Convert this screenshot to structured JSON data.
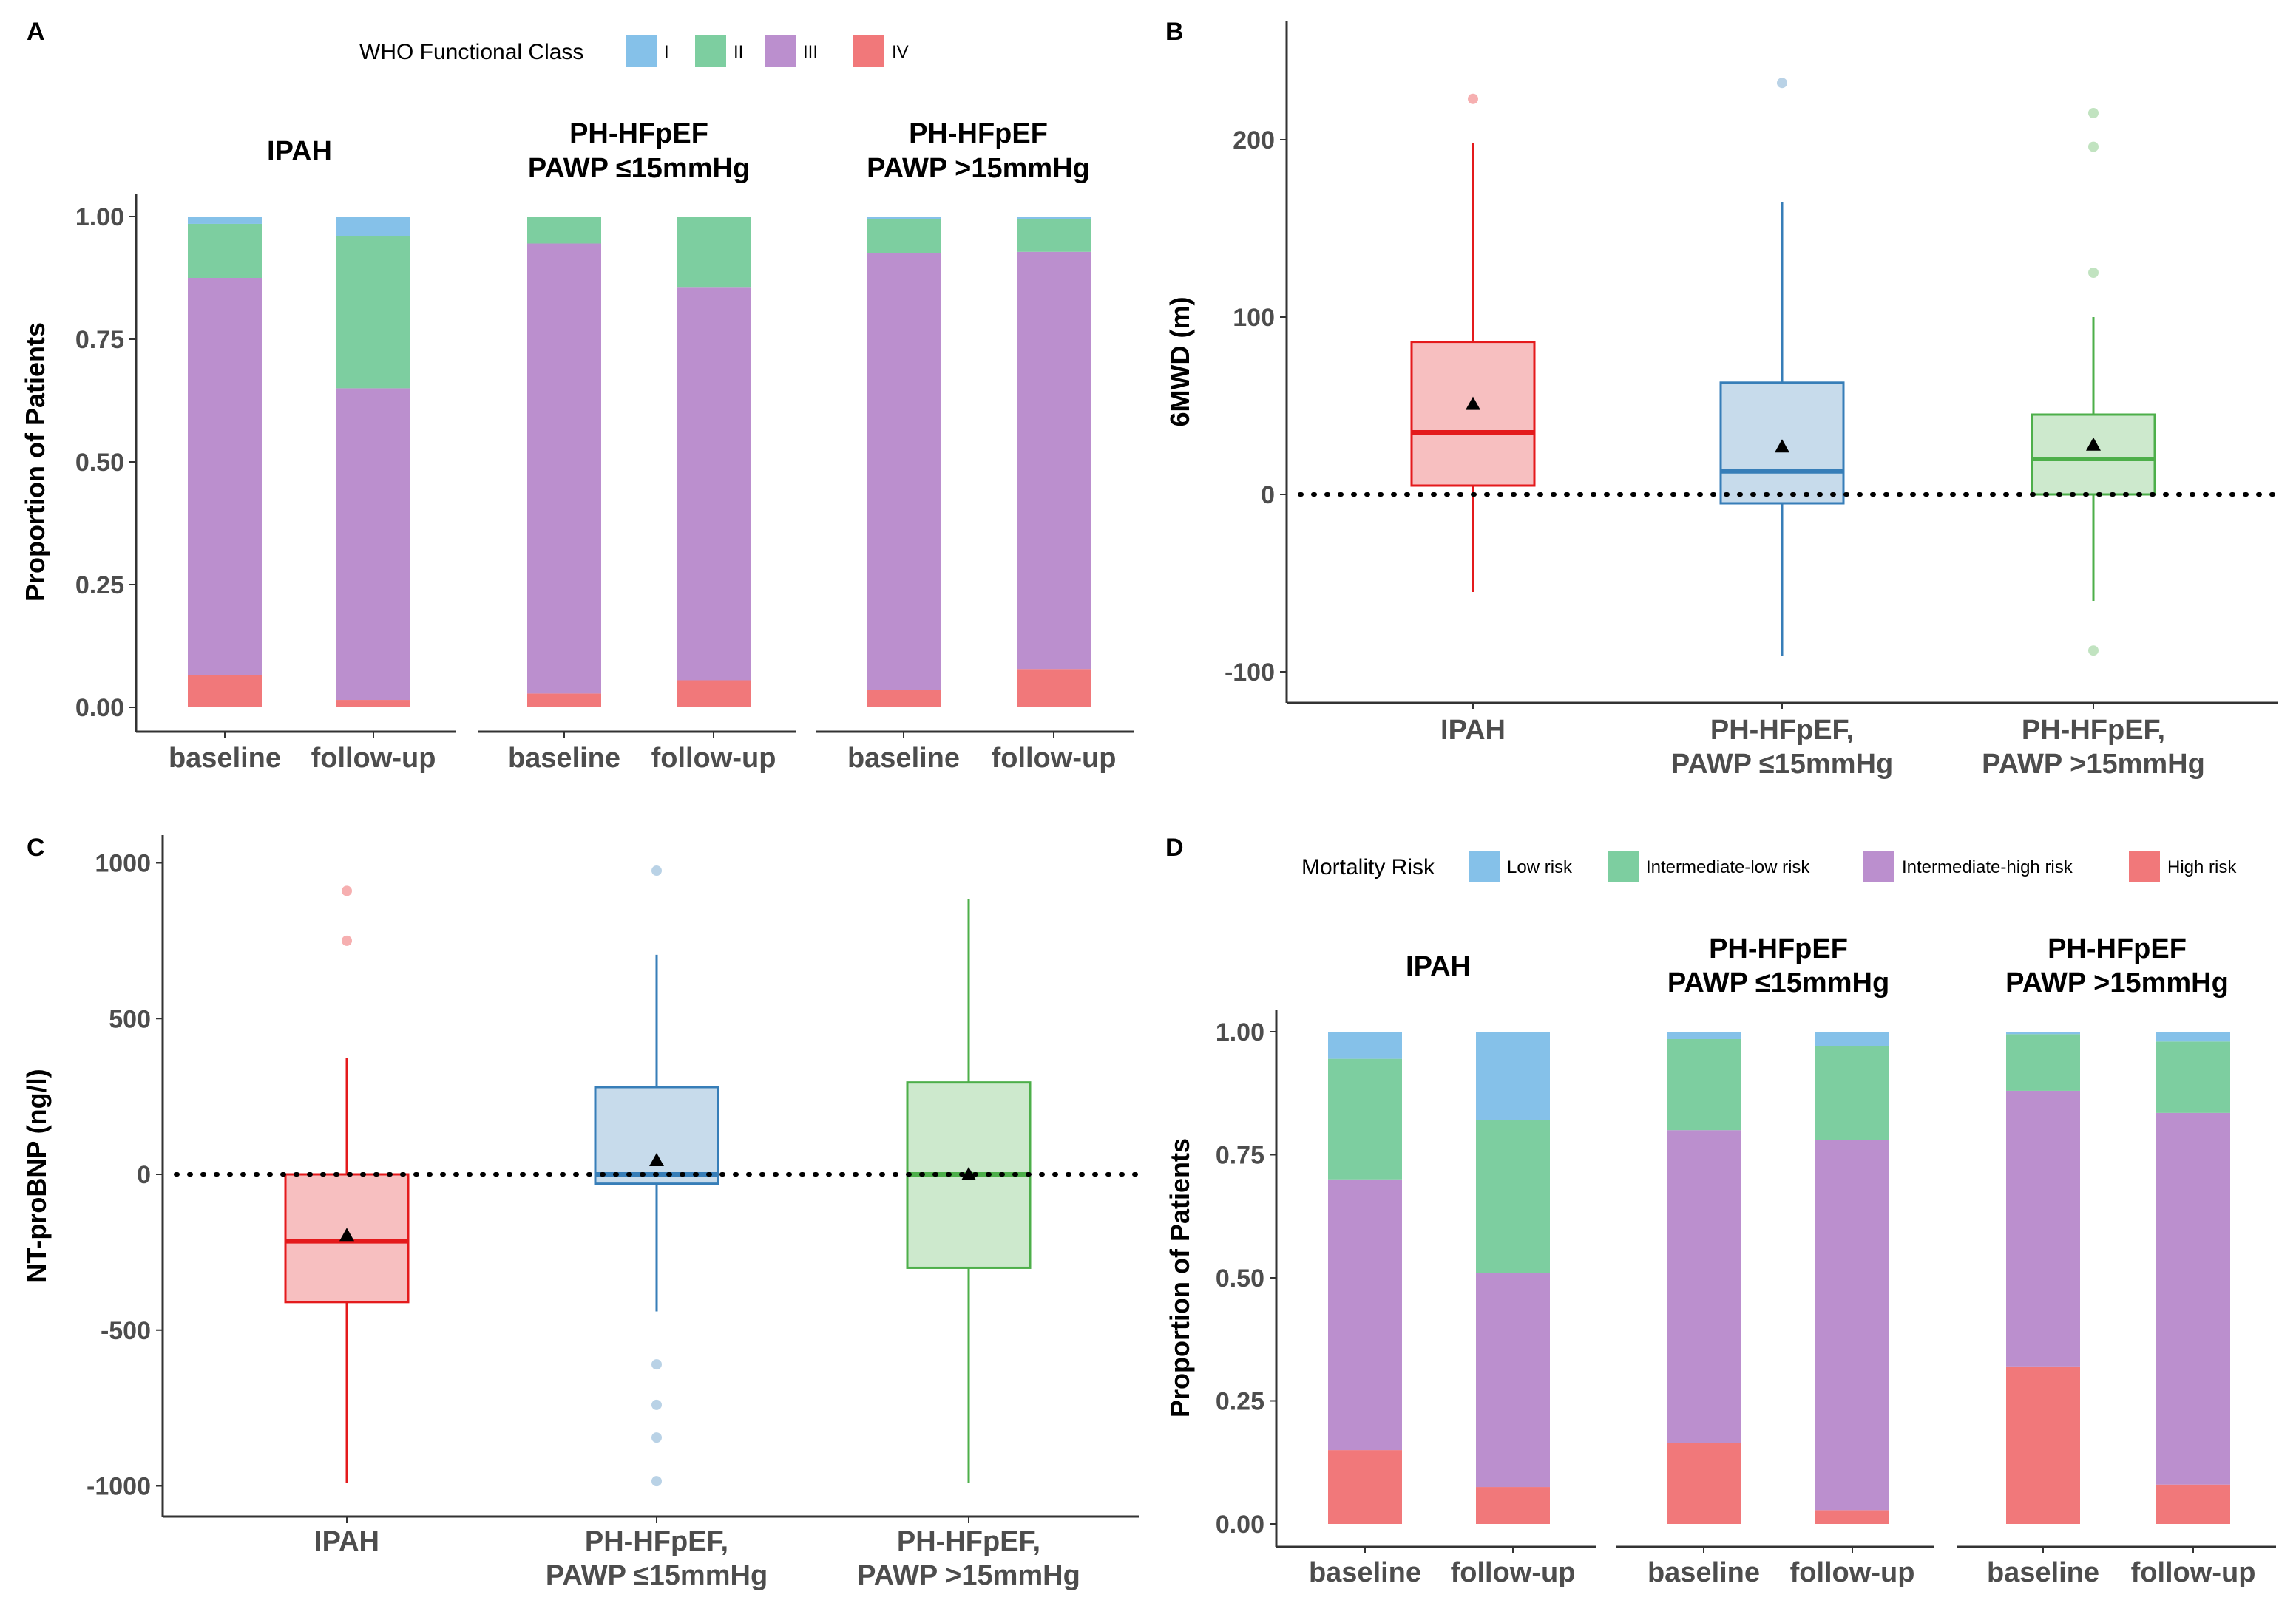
{
  "colors": {
    "I": "#85C1E9",
    "II": "#7DCEA0",
    "III": "#BB8FCE",
    "IV": "#F1787A",
    "IPAH": "#E41A1C",
    "PH_low": "#377EB8",
    "PH_high": "#4DAF4A"
  },
  "chart_data": [
    {
      "panel": "A",
      "type": "bar",
      "stacked": true,
      "legend_title": "WHO Functional Class",
      "legend": [
        "I",
        "II",
        "III",
        "IV"
      ],
      "ylabel": "Proportion of Patients",
      "ylim": [
        0,
        1
      ],
      "yticks": [
        "0.00",
        "0.25",
        "0.50",
        "0.75",
        "1.00"
      ],
      "categories": [
        "baseline",
        "follow-up"
      ],
      "facets": [
        {
          "title": [
            "IPAH"
          ],
          "bars": [
            {
              "label": "baseline",
              "IV": 0.065,
              "III": 0.81,
              "II": 0.11,
              "I": 0.015
            },
            {
              "label": "follow-up",
              "IV": 0.015,
              "III": 0.635,
              "II": 0.31,
              "I": 0.04
            }
          ]
        },
        {
          "title": [
            "PH-HFpEF",
            "PAWP ≤15mmHg"
          ],
          "bars": [
            {
              "label": "baseline",
              "IV": 0.028,
              "III": 0.917,
              "II": 0.055,
              "I": 0.0
            },
            {
              "label": "follow-up",
              "IV": 0.055,
              "III": 0.8,
              "II": 0.145,
              "I": 0.0
            }
          ]
        },
        {
          "title": [
            "PH-HFpEF",
            "PAWP >15mmHg"
          ],
          "bars": [
            {
              "label": "baseline",
              "IV": 0.035,
              "III": 0.89,
              "II": 0.07,
              "I": 0.005
            },
            {
              "label": "follow-up",
              "IV": 0.078,
              "III": 0.85,
              "II": 0.067,
              "I": 0.005
            }
          ]
        }
      ]
    },
    {
      "panel": "B",
      "type": "box",
      "ylabel": "6MWD (m)",
      "ylim": [
        -118,
        268
      ],
      "yticks": [
        -100,
        0,
        100,
        200
      ],
      "groups": [
        {
          "label": [
            "IPAH"
          ],
          "color_key": "IPAH",
          "q1": 5,
          "median": 35,
          "q3": 86,
          "whisker_low": -55,
          "whisker_high": 198,
          "mean": 51,
          "outliers": [
            223
          ]
        },
        {
          "label": [
            "PH-HFpEF,",
            "PAWP ≤15mmHg"
          ],
          "color_key": "PH_low",
          "q1": -5,
          "median": 13,
          "q3": 63,
          "whisker_low": -91,
          "whisker_high": 165,
          "mean": 27,
          "outliers": [
            232
          ]
        },
        {
          "label": [
            "PH-HFpEF,",
            "PAWP >15mmHg"
          ],
          "color_key": "PH_high",
          "q1": 0,
          "median": 20,
          "q3": 45,
          "whisker_low": -60,
          "whisker_high": 100,
          "mean": 28,
          "outliers": [
            215,
            196,
            125,
            -88
          ]
        }
      ]
    },
    {
      "panel": "C",
      "type": "box",
      "ylabel": "NT-proBNP (ng/l)",
      "ylim": [
        -1110,
        1110
      ],
      "yticks": [
        -1000,
        -500,
        0,
        500,
        1000
      ],
      "groups": [
        {
          "label": [
            "IPAH"
          ],
          "color_key": "IPAH",
          "q1": -410,
          "median": -215,
          "q3": 0,
          "whisker_low": -990,
          "whisker_high": 375,
          "mean": -195,
          "outliers": [
            910,
            750
          ]
        },
        {
          "label": [
            "PH-HFpEF,",
            "PAWP ≤15mmHg"
          ],
          "color_key": "PH_low",
          "q1": -30,
          "median": 0,
          "q3": 280,
          "whisker_low": -440,
          "whisker_high": 705,
          "mean": 45,
          "outliers": [
            975,
            -610,
            -740,
            -845,
            -985
          ]
        },
        {
          "label": [
            "PH-HFpEF,",
            "PAWP >15mmHg"
          ],
          "color_key": "PH_high",
          "q1": -300,
          "median": 0,
          "q3": 295,
          "whisker_low": -990,
          "whisker_high": 885,
          "mean": 0,
          "outliers": []
        }
      ]
    },
    {
      "panel": "D",
      "type": "bar",
      "stacked": true,
      "legend_title": "Mortality Risk",
      "legend": [
        "Low risk",
        "Intermediate-low risk",
        "Intermediate-high risk",
        "High risk"
      ],
      "ylabel": "Proportion of Patients",
      "ylim": [
        0,
        1
      ],
      "yticks": [
        "0.00",
        "0.25",
        "0.50",
        "0.75",
        "1.00"
      ],
      "categories": [
        "baseline",
        "follow-up"
      ],
      "facets": [
        {
          "title": [
            "IPAH"
          ],
          "bars": [
            {
              "label": "baseline",
              "High risk": 0.15,
              "Intermediate-high risk": 0.55,
              "Intermediate-low risk": 0.245,
              "Low risk": 0.055
            },
            {
              "label": "follow-up",
              "High risk": 0.075,
              "Intermediate-high risk": 0.435,
              "Intermediate-low risk": 0.31,
              "Low risk": 0.18
            }
          ]
        },
        {
          "title": [
            "PH-HFpEF",
            "PAWP ≤15mmHg"
          ],
          "bars": [
            {
              "label": "baseline",
              "High risk": 0.165,
              "Intermediate-high risk": 0.635,
              "Intermediate-low risk": 0.185,
              "Low risk": 0.015
            },
            {
              "label": "follow-up",
              "High risk": 0.028,
              "Intermediate-high risk": 0.752,
              "Intermediate-low risk": 0.19,
              "Low risk": 0.03
            }
          ]
        },
        {
          "title": [
            "PH-HFpEF",
            "PAWP >15mmHg"
          ],
          "bars": [
            {
              "label": "baseline",
              "High risk": 0.32,
              "Intermediate-high risk": 0.56,
              "Intermediate-low risk": 0.115,
              "Low risk": 0.005
            },
            {
              "label": "follow-up",
              "High risk": 0.08,
              "Intermediate-high risk": 0.755,
              "Intermediate-low risk": 0.145,
              "Low risk": 0.02
            }
          ]
        }
      ]
    }
  ]
}
